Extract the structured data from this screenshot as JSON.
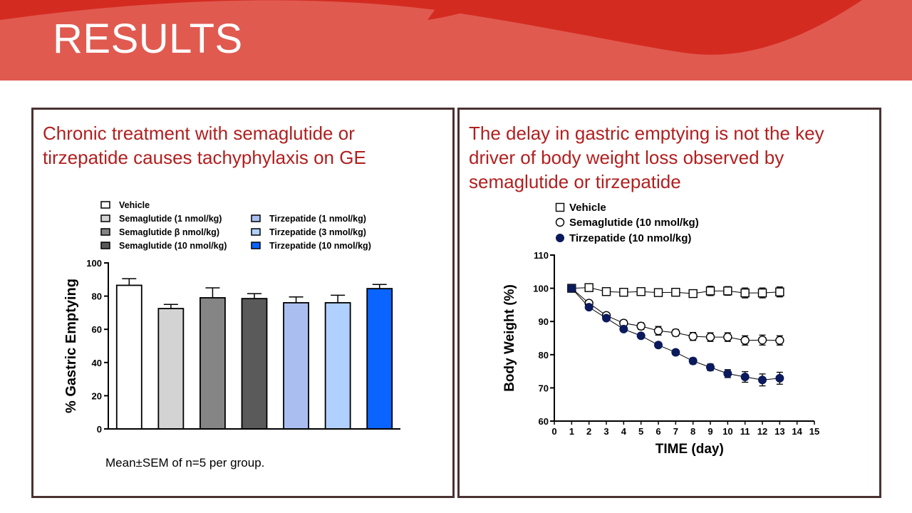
{
  "slide": {
    "title": "RESULTS",
    "colors": {
      "banner_dark": "#d42b20",
      "banner_light": "#e05a50",
      "panel_border": "#4a3232",
      "heading": "#b21f1f"
    }
  },
  "left_panel": {
    "heading": "Chronic treatment with semaglutide or tirzepatide causes tachyphylaxis on GE",
    "note": "Mean±SEM of n=5 per group."
  },
  "right_panel": {
    "heading": "The delay in gastric emptying is not the key driver of body weight loss observed by semaglutide or tirzepatide"
  },
  "chart_data": [
    {
      "type": "bar",
      "ylabel": "% Gastric Emptying",
      "xlabel": "",
      "ylim": [
        0,
        100
      ],
      "yticks": [
        0,
        20,
        40,
        60,
        80,
        100
      ],
      "grid": false,
      "legend_position": "top",
      "series": [
        {
          "name": "Vehicle",
          "value": 86.5,
          "error": 4.0,
          "color": "#ffffff"
        },
        {
          "name": "Semaglutide (1 nmol/kg)",
          "value": 72.5,
          "error": 2.5,
          "color": "#d3d3d3"
        },
        {
          "name": "Semaglutide β nmol/kg)",
          "value": 79.0,
          "error": 6.0,
          "color": "#858585"
        },
        {
          "name": "Semaglutide (10 nmol/kg)",
          "value": 78.5,
          "error": 3.0,
          "color": "#5a5a5a"
        },
        {
          "name": "Tirzepatide (1 nmol/kg)",
          "value": 76.0,
          "error": 3.5,
          "color": "#aabff0"
        },
        {
          "name": "Tirzepatide (3 nmol/kg)",
          "value": 76.0,
          "error": 4.5,
          "color": "#b0d0ff"
        },
        {
          "name": "Tirzepatide (10 nmol/kg)",
          "value": 84.5,
          "error": 2.5,
          "color": "#0a64ff"
        }
      ]
    },
    {
      "type": "line",
      "xlabel": "TIME (day)",
      "ylabel": "Body Weight (%)",
      "xlim": [
        0,
        15
      ],
      "ylim": [
        60,
        110
      ],
      "xticks": [
        0,
        1,
        2,
        3,
        4,
        5,
        6,
        7,
        8,
        9,
        10,
        11,
        12,
        13,
        14,
        15
      ],
      "yticks": [
        60,
        70,
        80,
        90,
        100,
        110
      ],
      "grid": false,
      "legend_position": "top-left",
      "series": [
        {
          "name": "Vehicle",
          "marker": "open-square",
          "color": "#000000",
          "x": [
            1,
            2,
            3,
            4,
            5,
            6,
            7,
            8,
            9,
            10,
            11,
            12,
            13
          ],
          "y": [
            100,
            100.2,
            99,
            98.8,
            99,
            98.7,
            98.8,
            98.4,
            99.2,
            99.2,
            98.6,
            98.6,
            98.9
          ],
          "error": [
            0,
            0.3,
            0.5,
            0.5,
            0.5,
            0.7,
            0.6,
            1.0,
            1.4,
            1.3,
            1.5,
            1.5,
            1.5
          ]
        },
        {
          "name": "Semaglutide (10 nmol/kg)",
          "marker": "open-circle",
          "color": "#000000",
          "x": [
            1,
            2,
            3,
            4,
            5,
            6,
            7,
            8,
            9,
            10,
            11,
            12,
            13
          ],
          "y": [
            100,
            95.5,
            91.8,
            89.5,
            88.6,
            87.2,
            86.6,
            85.5,
            85.3,
            85.3,
            84.3,
            84.4,
            84.3
          ],
          "error": [
            0,
            0.5,
            0.8,
            0.9,
            1.0,
            1.3,
            1.0,
            1.2,
            1.3,
            1.3,
            1.4,
            1.5,
            1.4
          ]
        },
        {
          "name": "Tirzepatide (10 nmol/kg)",
          "marker": "filled-circle",
          "color": "#0b1a5c",
          "x": [
            1,
            2,
            3,
            4,
            5,
            6,
            7,
            8,
            9,
            10,
            11,
            12,
            13
          ],
          "y": [
            100,
            94.3,
            91.0,
            87.7,
            85.7,
            82.9,
            80.7,
            78.1,
            76.2,
            74.3,
            73.3,
            72.4,
            72.9
          ],
          "error": [
            0,
            0.5,
            0.6,
            0.7,
            0.7,
            0.8,
            0.8,
            0.9,
            1.0,
            1.2,
            1.6,
            1.8,
            1.8
          ]
        }
      ]
    }
  ]
}
